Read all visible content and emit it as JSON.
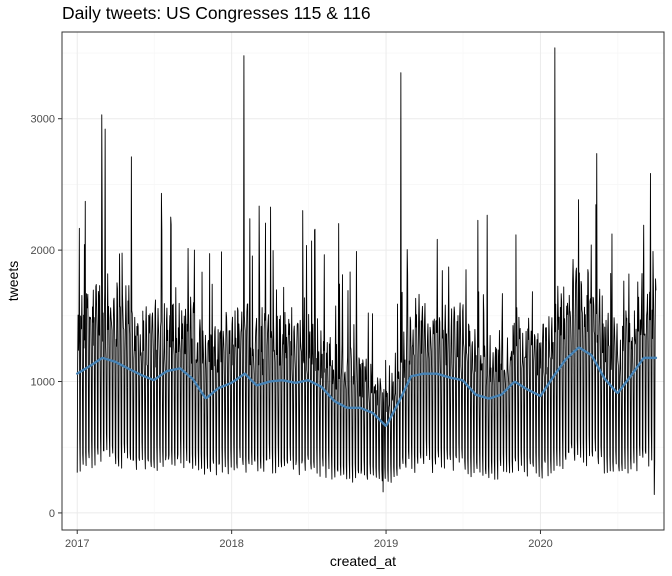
{
  "chart_data": {
    "type": "line",
    "title": "Daily tweets: US Congresses 115 & 116",
    "xlabel": "created_at",
    "ylabel": "tweets",
    "x_range": [
      "2017-01-01",
      "2020-09-30"
    ],
    "ylim": [
      0,
      3500
    ],
    "x_ticks": [
      {
        "date": "2017-01-01",
        "label": "2017"
      },
      {
        "date": "2018-01-01",
        "label": "2018"
      },
      {
        "date": "2019-01-01",
        "label": "2019"
      },
      {
        "date": "2020-01-01",
        "label": "2020"
      }
    ],
    "y_ticks": [
      0,
      1000,
      2000,
      3000
    ],
    "grid": true,
    "series": [
      {
        "kind": "daily",
        "color": "#000000",
        "weekday_factors": [
          1.3,
          1.35,
          1.35,
          1.3,
          1.15,
          0.45,
          0.35
        ],
        "spikes": [
          {
            "date": "2017-02-28",
            "value": 3030
          },
          {
            "date": "2017-03-01",
            "value": 2230
          },
          {
            "date": "2017-05-09",
            "value": 2710
          },
          {
            "date": "2018-01-30",
            "value": 3480
          },
          {
            "date": "2019-02-05",
            "value": 3350
          },
          {
            "date": "2020-02-04",
            "value": 3540
          },
          {
            "date": "2020-09-01",
            "value": 2190
          },
          {
            "date": "2020-09-23",
            "value": 1990
          }
        ],
        "dips": [
          {
            "date": "2018-12-25",
            "value": 160
          },
          {
            "date": "2020-09-26",
            "value": 140
          }
        ]
      },
      {
        "kind": "trend",
        "color": "#4682b4",
        "x": [
          "2017-01-01",
          "2017-02-01",
          "2017-03-01",
          "2017-04-01",
          "2017-05-01",
          "2017-06-01",
          "2017-07-01",
          "2017-08-01",
          "2017-09-01",
          "2017-10-01",
          "2017-11-01",
          "2017-12-01",
          "2018-01-01",
          "2018-02-01",
          "2018-03-01",
          "2018-04-01",
          "2018-05-01",
          "2018-06-01",
          "2018-07-01",
          "2018-08-01",
          "2018-09-01",
          "2018-10-01",
          "2018-11-01",
          "2018-12-01",
          "2019-01-01",
          "2019-02-01",
          "2019-03-01",
          "2019-04-01",
          "2019-05-01",
          "2019-06-01",
          "2019-07-01",
          "2019-08-01",
          "2019-09-01",
          "2019-10-01",
          "2019-11-01",
          "2019-12-01",
          "2020-01-01",
          "2020-02-01",
          "2020-03-01",
          "2020-04-01",
          "2020-05-01",
          "2020-06-01",
          "2020-07-01",
          "2020-08-01",
          "2020-09-01"
        ],
        "values": [
          1060,
          1120,
          1180,
          1150,
          1100,
          1050,
          1010,
          1080,
          1100,
          1020,
          870,
          950,
          990,
          1060,
          970,
          1000,
          1010,
          990,
          1010,
          960,
          850,
          800,
          800,
          760,
          660,
          850,
          1040,
          1060,
          1060,
          1030,
          1010,
          900,
          870,
          900,
          1000,
          940,
          890,
          1040,
          1170,
          1260,
          1200,
          1020,
          910,
          1040,
          1180
        ]
      }
    ]
  }
}
